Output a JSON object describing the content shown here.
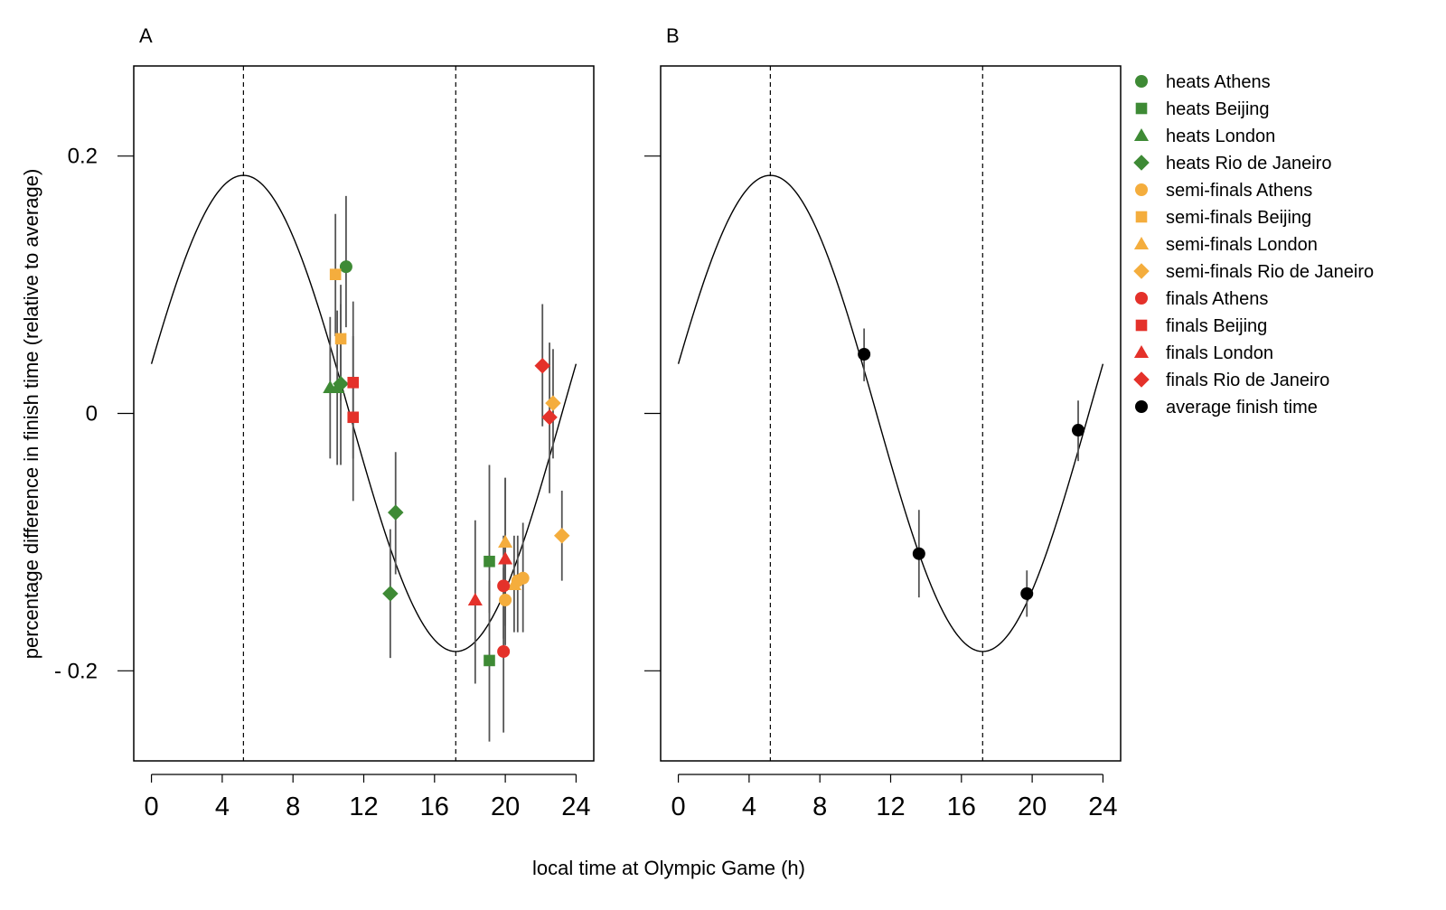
{
  "figure": {
    "xlabel": "local time at Olympic Game (h)",
    "ylabel": "percentage difference in finish time (relative to average)"
  },
  "colors": {
    "heats": "#3e8a35",
    "semi_finals": "#f4ad3d",
    "finals": "#e4312a",
    "average": "#000000"
  },
  "chart_data": [
    {
      "panel": "A",
      "type": "scatter",
      "xlim": [
        -1,
        25
      ],
      "ylim": [
        -0.27,
        0.27
      ],
      "xticks": [
        "0",
        "4",
        "8",
        "12",
        "16",
        "20",
        "24"
      ],
      "yticks": [
        "0.2",
        "0",
        "- 0.2"
      ],
      "curve": {
        "type": "cosine",
        "mesor": 0,
        "amplitude": 0.185,
        "acrophase_h": 5.2,
        "period_h": 24,
        "x_range": [
          0,
          24
        ]
      },
      "vlines": [
        5.2,
        17.2
      ],
      "series": [
        {
          "name": "heats Athens",
          "group": "heats",
          "shape": "circle",
          "points": [
            {
              "x": 11.0,
              "y": 0.114,
              "lo": 0.067,
              "hi": 0.169
            }
          ]
        },
        {
          "name": "heats Beijing",
          "group": "heats",
          "shape": "square",
          "points": [
            {
              "x": 19.1,
              "y": -0.115,
              "lo": -0.155,
              "hi": -0.04
            },
            {
              "x": 19.1,
              "y": -0.192,
              "lo": -0.255,
              "hi": -0.13
            }
          ]
        },
        {
          "name": "heats London",
          "group": "heats",
          "shape": "triangle",
          "points": [
            {
              "x": 10.1,
              "y": 0.02,
              "lo": -0.035,
              "hi": 0.075
            },
            {
              "x": 10.5,
              "y": 0.02,
              "lo": -0.04,
              "hi": 0.08
            }
          ]
        },
        {
          "name": "heats Rio de Janeiro",
          "group": "heats",
          "shape": "diamond",
          "points": [
            {
              "x": 10.7,
              "y": 0.023,
              "lo": -0.04,
              "hi": 0.085
            },
            {
              "x": 13.8,
              "y": -0.077,
              "lo": -0.125,
              "hi": -0.03
            },
            {
              "x": 13.5,
              "y": -0.14,
              "lo": -0.19,
              "hi": -0.09
            }
          ]
        },
        {
          "name": "semi-finals Athens",
          "group": "semi_finals",
          "shape": "circle",
          "points": [
            {
              "x": 20.0,
              "y": -0.145,
              "lo": -0.18,
              "hi": -0.11
            },
            {
              "x": 20.7,
              "y": -0.13,
              "lo": -0.17,
              "hi": -0.095
            },
            {
              "x": 21.0,
              "y": -0.128,
              "lo": -0.17,
              "hi": -0.085
            }
          ]
        },
        {
          "name": "semi-finals Beijing",
          "group": "semi_finals",
          "shape": "square",
          "points": [
            {
              "x": 10.4,
              "y": 0.108,
              "lo": 0.06,
              "hi": 0.155
            },
            {
              "x": 10.7,
              "y": 0.058,
              "lo": 0.01,
              "hi": 0.1
            }
          ]
        },
        {
          "name": "semi-finals London",
          "group": "semi_finals",
          "shape": "triangle",
          "points": [
            {
              "x": 20.0,
              "y": -0.1,
              "lo": -0.145,
              "hi": -0.05
            },
            {
              "x": 20.5,
              "y": -0.133,
              "lo": -0.17,
              "hi": -0.095
            }
          ]
        },
        {
          "name": "semi-finals Rio de Janeiro",
          "group": "semi_finals",
          "shape": "diamond",
          "points": [
            {
              "x": 22.7,
              "y": 0.008,
              "lo": -0.035,
              "hi": 0.05
            },
            {
              "x": 23.2,
              "y": -0.095,
              "lo": -0.13,
              "hi": -0.06
            }
          ]
        },
        {
          "name": "finals Athens",
          "group": "finals",
          "shape": "circle",
          "points": [
            {
              "x": 19.9,
              "y": -0.134,
              "lo": -0.175,
              "hi": -0.095
            },
            {
              "x": 19.9,
              "y": -0.185,
              "lo": -0.248,
              "hi": -0.12
            }
          ]
        },
        {
          "name": "finals Beijing",
          "group": "finals",
          "shape": "square",
          "points": [
            {
              "x": 11.4,
              "y": 0.024,
              "lo": -0.035,
              "hi": 0.087
            },
            {
              "x": 11.4,
              "y": -0.003,
              "lo": -0.068,
              "hi": 0.06
            }
          ]
        },
        {
          "name": "finals London",
          "group": "finals",
          "shape": "triangle",
          "points": [
            {
              "x": 18.3,
              "y": -0.145,
              "lo": -0.21,
              "hi": -0.083
            },
            {
              "x": 20.0,
              "y": -0.113,
              "lo": -0.165,
              "hi": -0.05
            }
          ]
        },
        {
          "name": "finals Rio de Janeiro",
          "group": "finals",
          "shape": "diamond",
          "points": [
            {
              "x": 22.1,
              "y": 0.037,
              "lo": -0.01,
              "hi": 0.085
            },
            {
              "x": 22.5,
              "y": -0.003,
              "lo": -0.062,
              "hi": 0.055
            }
          ]
        }
      ]
    },
    {
      "panel": "B",
      "type": "scatter",
      "xlim": [
        -1,
        25
      ],
      "ylim": [
        -0.27,
        0.27
      ],
      "xticks": [
        "0",
        "4",
        "8",
        "12",
        "16",
        "20",
        "24"
      ],
      "yticks": [],
      "curve": {
        "type": "cosine",
        "mesor": 0,
        "amplitude": 0.185,
        "acrophase_h": 5.2,
        "period_h": 24,
        "x_range": [
          0,
          24
        ]
      },
      "vlines": [
        5.2,
        17.2
      ],
      "series": [
        {
          "name": "average finish time",
          "group": "average",
          "shape": "circle",
          "points": [
            {
              "x": 10.5,
              "y": 0.046,
              "lo": 0.025,
              "hi": 0.066
            },
            {
              "x": 13.6,
              "y": -0.109,
              "lo": -0.143,
              "hi": -0.075
            },
            {
              "x": 19.7,
              "y": -0.14,
              "lo": -0.158,
              "hi": -0.122
            },
            {
              "x": 22.6,
              "y": -0.013,
              "lo": -0.037,
              "hi": 0.01
            }
          ]
        }
      ]
    }
  ]
}
